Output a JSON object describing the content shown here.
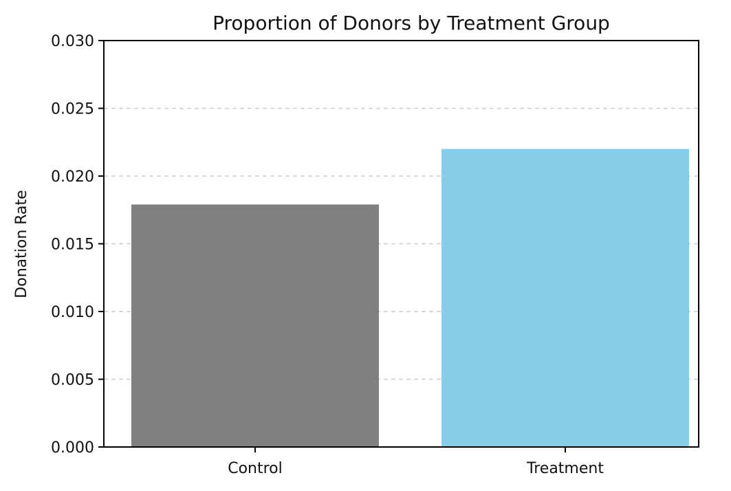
{
  "chart_data": {
    "type": "bar",
    "title": "Proportion of Donors by Treatment Group",
    "xlabel": "",
    "ylabel": "Donation Rate",
    "categories": [
      "Control",
      "Treatment"
    ],
    "values": [
      0.0179,
      0.022
    ],
    "ylim": [
      0,
      0.03
    ],
    "yticks": [
      "0.000",
      "0.005",
      "0.010",
      "0.015",
      "0.020",
      "0.025",
      "0.030"
    ],
    "grid": "y-dashed",
    "colors": {
      "Control": "#808080",
      "Treatment": "#87ceeb",
      "grid": "#cccccc",
      "axis": "#000000"
    }
  }
}
